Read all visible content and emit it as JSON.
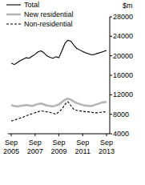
{
  "chart_data": {
    "type": "line",
    "y_label": "$m",
    "categories": [
      "Sep 2005",
      null,
      null,
      null,
      null,
      null,
      null,
      null,
      "Sep 2007",
      null,
      null,
      null,
      null,
      null,
      null,
      null,
      "Sep 2009",
      null,
      null,
      null,
      null,
      null,
      null,
      null,
      "Sep 2011",
      null,
      null,
      null,
      null,
      null,
      null,
      null,
      "Sep 2013"
    ],
    "series": [
      {
        "name": "Total",
        "color": "#000000",
        "line_style": "solid",
        "values": [
          18500,
          18200,
          18600,
          19000,
          19300,
          19600,
          19500,
          19900,
          20300,
          20800,
          21000,
          20600,
          20000,
          19700,
          19500,
          19800,
          19600,
          21000,
          22500,
          23200,
          23000,
          22200,
          21500,
          21200,
          20900,
          20600,
          20400,
          20200,
          20300,
          20500,
          20700,
          20900,
          21100
        ]
      },
      {
        "name": "New residential",
        "color": "#b3b3b3",
        "line_style": "solid",
        "values": [
          9900,
          9700,
          9600,
          9700,
          9800,
          9900,
          9800,
          9700,
          9900,
          10100,
          10200,
          10000,
          9800,
          9700,
          9600,
          9800,
          10000,
          10500,
          11000,
          11200,
          11000,
          10600,
          10300,
          10100,
          9900,
          9800,
          9700,
          9700,
          9900,
          10100,
          10300,
          10500,
          10500
        ]
      },
      {
        "name": "Non-residential",
        "color": "#000000",
        "line_style": "dashed",
        "values": [
          6600,
          6800,
          7000,
          7200,
          7400,
          7700,
          7900,
          8100,
          8300,
          8500,
          8700,
          8600,
          8500,
          8400,
          8200,
          8000,
          8500,
          9000,
          10000,
          10600,
          9800,
          9000,
          8800,
          8700,
          8600,
          8500,
          8500,
          8400,
          8300,
          8300,
          8400,
          8500,
          8400
        ]
      }
    ],
    "ylim": [
      4000,
      28000
    ],
    "yticks": [
      4000,
      8000,
      12000,
      16000,
      20000,
      24000,
      28000
    ],
    "legend": "top-left"
  }
}
